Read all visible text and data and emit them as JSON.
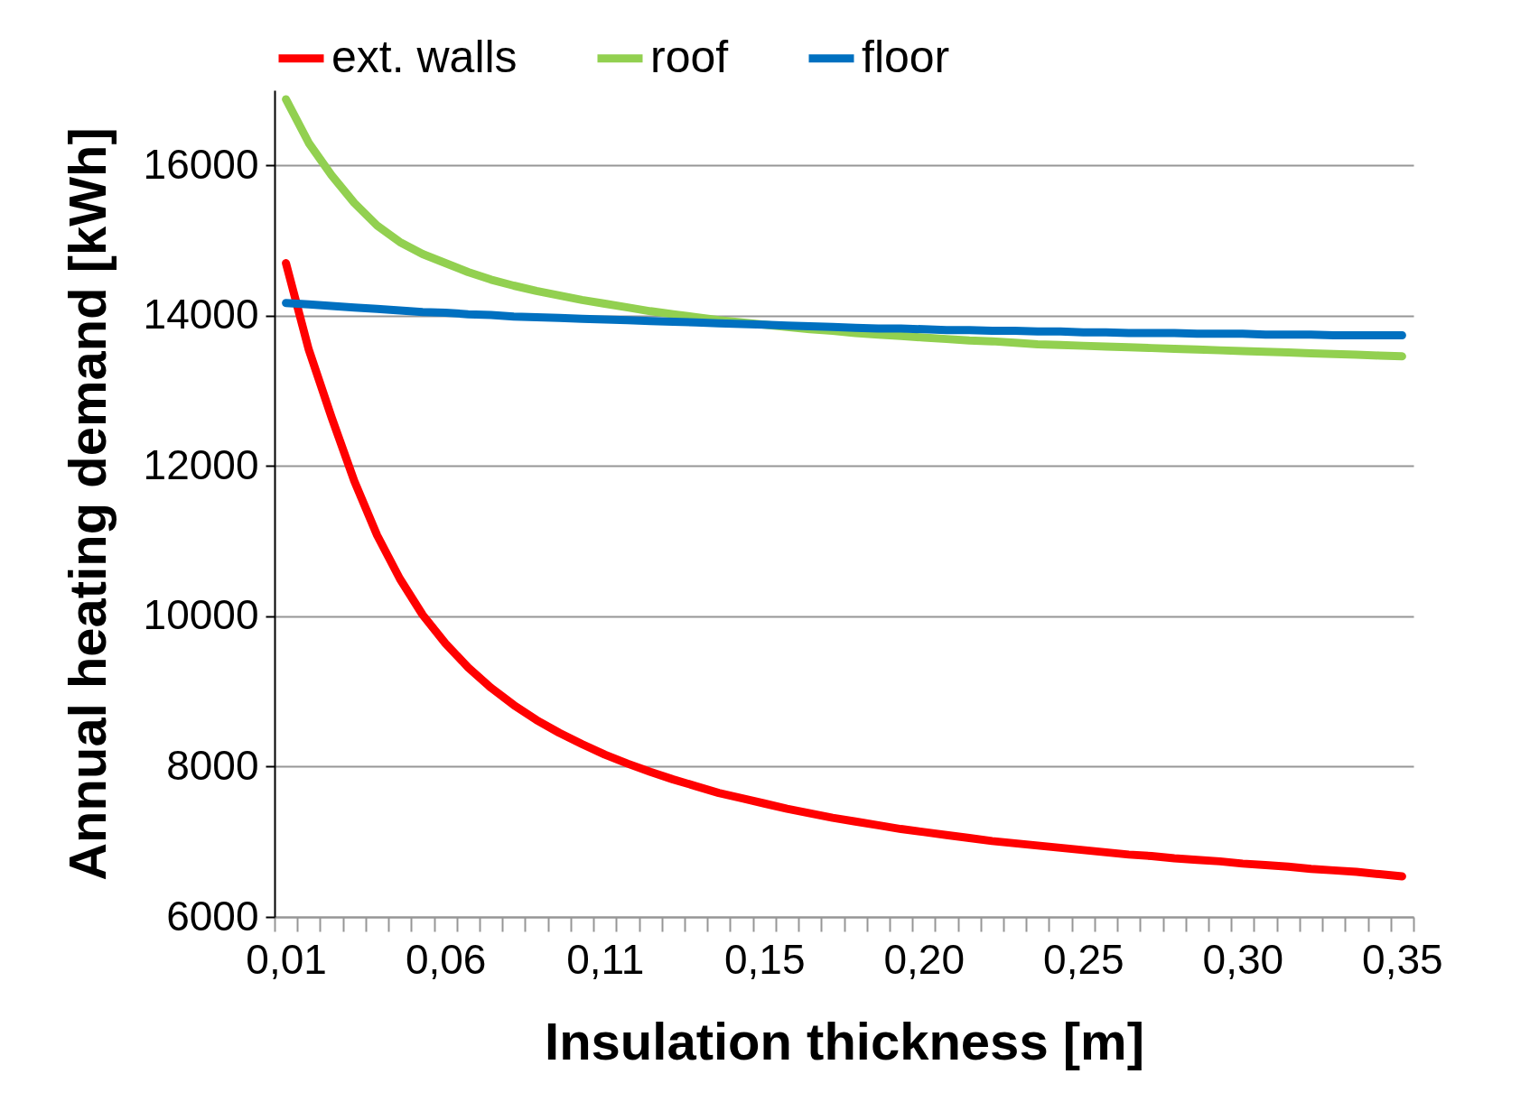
{
  "chart_data": {
    "type": "line",
    "xlabel": "Insulation thickness [m]",
    "ylabel": "Annual heating demand [kWh]",
    "categories": [
      "0,01",
      null,
      null,
      null,
      null,
      null,
      null,
      "0,06",
      null,
      null,
      null,
      null,
      null,
      null,
      "0,11",
      null,
      null,
      null,
      null,
      null,
      null,
      "0,15",
      null,
      null,
      null,
      null,
      null,
      null,
      "0,20",
      null,
      null,
      null,
      null,
      null,
      null,
      "0,25",
      null,
      null,
      null,
      null,
      null,
      null,
      "0,30",
      null,
      null,
      null,
      null,
      null,
      null,
      "0,35"
    ],
    "series": [
      {
        "name": "ext. walls",
        "color": "#ff0000",
        "values": [
          14700,
          13550,
          12650,
          11800,
          11080,
          10500,
          10020,
          9640,
          9320,
          9050,
          8820,
          8620,
          8450,
          8300,
          8160,
          8040,
          7930,
          7830,
          7740,
          7650,
          7580,
          7510,
          7440,
          7380,
          7320,
          7270,
          7220,
          7170,
          7130,
          7090,
          7050,
          7010,
          6980,
          6950,
          6920,
          6890,
          6860,
          6830,
          6810,
          6780,
          6760,
          6740,
          6710,
          6690,
          6670,
          6640,
          6620,
          6600,
          6570,
          6540
        ]
      },
      {
        "name": "roof",
        "color": "#92d050",
        "values": [
          16880,
          16300,
          15870,
          15500,
          15200,
          14980,
          14820,
          14700,
          14580,
          14480,
          14400,
          14330,
          14270,
          14210,
          14160,
          14110,
          14060,
          14020,
          13980,
          13940,
          13910,
          13880,
          13850,
          13820,
          13800,
          13770,
          13750,
          13730,
          13710,
          13690,
          13670,
          13660,
          13640,
          13620,
          13610,
          13600,
          13590,
          13580,
          13570,
          13560,
          13550,
          13540,
          13530,
          13520,
          13510,
          13500,
          13490,
          13480,
          13470,
          13460
        ]
      },
      {
        "name": "floor",
        "color": "#0070c0",
        "values": [
          14170,
          14150,
          14130,
          14110,
          14090,
          14070,
          14050,
          14040,
          14020,
          14010,
          13990,
          13980,
          13970,
          13960,
          13950,
          13940,
          13930,
          13920,
          13910,
          13900,
          13890,
          13880,
          13870,
          13860,
          13850,
          13840,
          13830,
          13830,
          13820,
          13810,
          13810,
          13800,
          13800,
          13790,
          13790,
          13780,
          13780,
          13770,
          13770,
          13770,
          13760,
          13760,
          13760,
          13750,
          13750,
          13750,
          13740,
          13740,
          13740,
          13740
        ]
      }
    ],
    "ylim": [
      6000,
      17000
    ],
    "yticks": [
      6000,
      8000,
      10000,
      12000,
      14000,
      16000
    ],
    "grid": "y",
    "legend": "top",
    "marker": "none",
    "line_style": "solid"
  }
}
